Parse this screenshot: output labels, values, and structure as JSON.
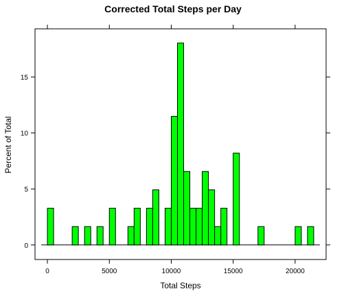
{
  "chart_data": {
    "type": "bar",
    "title": "Corrected Total Steps per Day",
    "xlabel": "Total Steps",
    "ylabel": "Percent of Total",
    "bin_width": 500,
    "xlim": [
      -1000,
      22500
    ],
    "ylim": [
      -1.3,
      19.3
    ],
    "x_ticks": [
      0,
      5000,
      10000,
      15000,
      20000
    ],
    "y_ticks": [
      0,
      5,
      10,
      15
    ],
    "bar_color": "#00ff00",
    "edge_color": "#000000",
    "bins": [
      {
        "start": 0,
        "percent": 3.28
      },
      {
        "start": 2000,
        "percent": 1.64
      },
      {
        "start": 3000,
        "percent": 1.64
      },
      {
        "start": 4000,
        "percent": 1.64
      },
      {
        "start": 5000,
        "percent": 3.28
      },
      {
        "start": 6500,
        "percent": 1.64
      },
      {
        "start": 7000,
        "percent": 3.28
      },
      {
        "start": 8000,
        "percent": 3.28
      },
      {
        "start": 8500,
        "percent": 4.92
      },
      {
        "start": 9500,
        "percent": 3.28
      },
      {
        "start": 10000,
        "percent": 11.48
      },
      {
        "start": 10500,
        "percent": 18.03
      },
      {
        "start": 11000,
        "percent": 6.56
      },
      {
        "start": 11500,
        "percent": 3.28
      },
      {
        "start": 12000,
        "percent": 3.28
      },
      {
        "start": 12500,
        "percent": 6.56
      },
      {
        "start": 13000,
        "percent": 4.92
      },
      {
        "start": 13500,
        "percent": 1.64
      },
      {
        "start": 14000,
        "percent": 3.28
      },
      {
        "start": 15000,
        "percent": 8.2
      },
      {
        "start": 17000,
        "percent": 1.64
      },
      {
        "start": 20000,
        "percent": 1.64
      },
      {
        "start": 21000,
        "percent": 1.64
      }
    ]
  }
}
